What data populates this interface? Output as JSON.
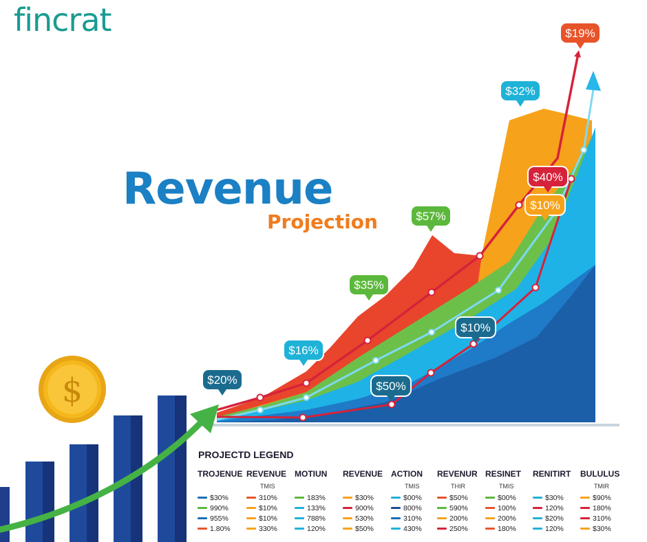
{
  "brand": {
    "logo_text": "fincrat"
  },
  "heading": {
    "title": "Revenue",
    "subtitle": "Projection"
  },
  "chart_data": {
    "type": "area",
    "callouts": [
      {
        "text": "$19%",
        "color": "#e8542a"
      },
      {
        "text": "$32%",
        "color": "#1fb2d8"
      },
      {
        "text": "$40%",
        "color": "#d6223a"
      },
      {
        "text": "$10%",
        "color": "#f7a21b"
      },
      {
        "text": "$57%",
        "color": "#5cb83c"
      },
      {
        "text": "$35%",
        "color": "#5cb83c"
      },
      {
        "text": "$10%",
        "color": "#1b6b8f"
      },
      {
        "text": "$16%",
        "color": "#1fb2d8"
      },
      {
        "text": "$50%",
        "color": "#1b6b8f"
      },
      {
        "text": "$20%",
        "color": "#1b6b8f"
      }
    ],
    "colors": {
      "dark_blue": "#1a5fa8",
      "light_blue": "#1fb2e6",
      "green": "#6cc04a",
      "orange": "#f7a21b",
      "red": "#e8452c",
      "arrow_red": "#d6223a",
      "arrow_green": "#45b245",
      "bars": "#1f4a9c",
      "coin": "#f5b81c"
    }
  },
  "legend": {
    "title": "PROJECTD LEGEND",
    "columns": [
      {
        "header": "TROJENUE",
        "sub": "",
        "items": [
          {
            "color": "#1b6fb5",
            "text": "$30%"
          },
          {
            "color": "#5cb83c",
            "text": "990%"
          },
          {
            "color": "#1b6fb5",
            "text": "955%"
          },
          {
            "color": "#e8542a",
            "text": "1.80%"
          }
        ]
      },
      {
        "header": "REVENUE",
        "sub": "TMIS",
        "items": [
          {
            "color": "#e8542a",
            "text": "310%"
          },
          {
            "color": "#f7a21b",
            "text": "$10%"
          },
          {
            "color": "#f7a21b",
            "text": "$10%"
          },
          {
            "color": "#f7a21b",
            "text": "330%"
          }
        ]
      },
      {
        "header": "MOTIUN",
        "sub": "",
        "items": [
          {
            "color": "#5cb83c",
            "text": "183%"
          },
          {
            "color": "#1fb2d8",
            "text": "133%"
          },
          {
            "color": "#1fb2d8",
            "text": "788%"
          },
          {
            "color": "#1fb2d8",
            "text": "120%"
          }
        ]
      },
      {
        "header": "REVENUE",
        "sub": "",
        "items": [
          {
            "color": "#f7a21b",
            "text": "$30%"
          },
          {
            "color": "#d6223a",
            "text": "900%"
          },
          {
            "color": "#f7a21b",
            "text": "530%"
          },
          {
            "color": "#f7a21b",
            "text": "$50%"
          }
        ]
      },
      {
        "header": "ACTION",
        "sub": "TMIS",
        "items": [
          {
            "color": "#1fb2d8",
            "text": "$00%"
          },
          {
            "color": "#1b4f8f",
            "text": "800%"
          },
          {
            "color": "#1b6fb5",
            "text": "310%"
          },
          {
            "color": "#1fb2d8",
            "text": "430%"
          }
        ]
      },
      {
        "header": "REVENUR",
        "sub": "THIR",
        "items": [
          {
            "color": "#e8542a",
            "text": "$50%"
          },
          {
            "color": "#5cb83c",
            "text": "590%"
          },
          {
            "color": "#f7a21b",
            "text": "200%"
          },
          {
            "color": "#d6223a",
            "text": "250%"
          }
        ]
      },
      {
        "header": "RESINET",
        "sub": "TMIS",
        "items": [
          {
            "color": "#5cb83c",
            "text": "$00%"
          },
          {
            "color": "#e8542a",
            "text": "100%"
          },
          {
            "color": "#f7a21b",
            "text": "200%"
          },
          {
            "color": "#e8542a",
            "text": "180%"
          }
        ]
      },
      {
        "header": "RENITIRT",
        "sub": "",
        "items": [
          {
            "color": "#1fb2d8",
            "text": "$30%"
          },
          {
            "color": "#d6223a",
            "text": "120%"
          },
          {
            "color": "#1fb2d8",
            "text": "$20%"
          },
          {
            "color": "#1fb2d8",
            "text": "120%"
          }
        ]
      },
      {
        "header": "BULULUS",
        "sub": "TMIR",
        "items": [
          {
            "color": "#f7a21b",
            "text": "$90%"
          },
          {
            "color": "#d6223a",
            "text": "180%"
          },
          {
            "color": "#d6223a",
            "text": "310%"
          },
          {
            "color": "#f7a21b",
            "text": "$30%"
          }
        ]
      }
    ]
  }
}
